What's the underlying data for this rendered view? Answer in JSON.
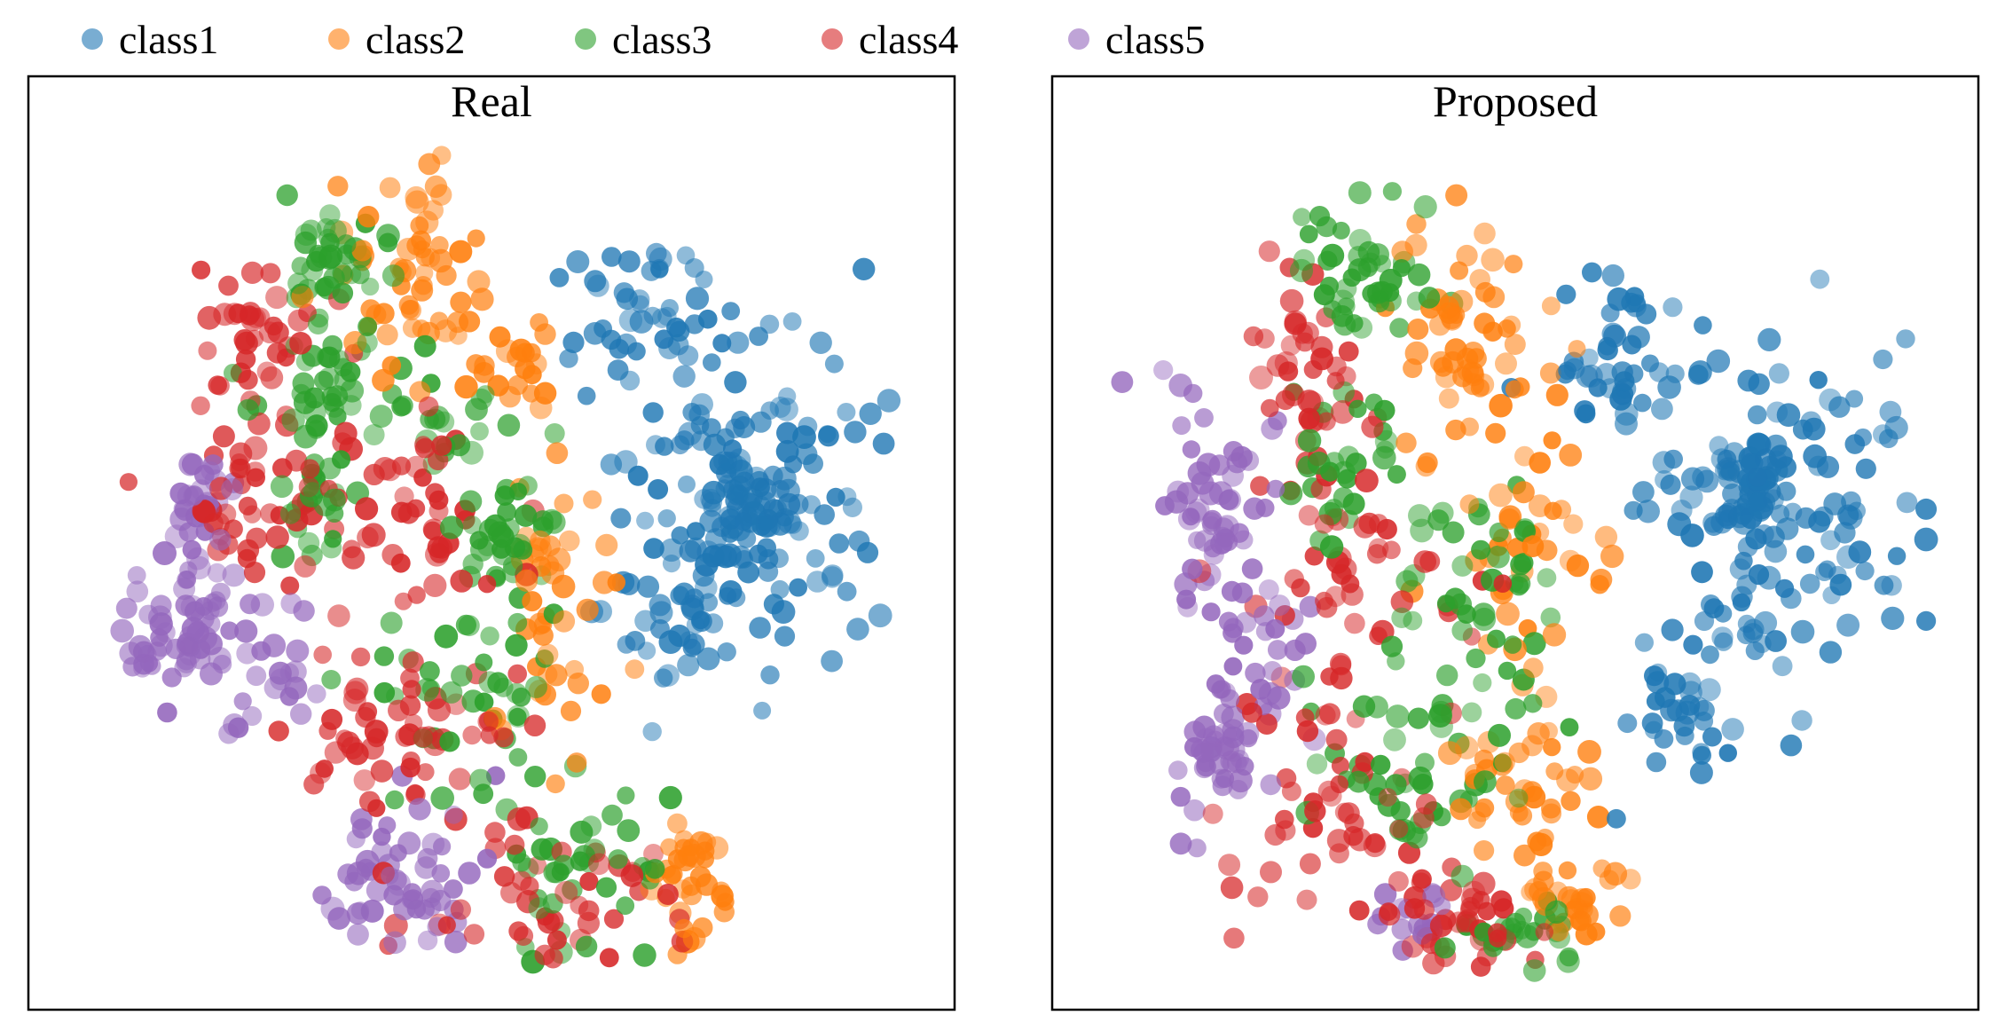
{
  "legend": {
    "items": [
      {
        "label": "class1",
        "color": "#1f77b4"
      },
      {
        "label": "class2",
        "color": "#ff7f0e"
      },
      {
        "label": "class3",
        "color": "#2ca02c"
      },
      {
        "label": "class4",
        "color": "#d62728"
      },
      {
        "label": "class5",
        "color": "#9467bd"
      }
    ]
  },
  "chart_data": [
    {
      "type": "scatter",
      "title": "Real",
      "xlabel": "",
      "ylabel": "",
      "grid": false,
      "axis_ticks": false,
      "xlim": [
        0,
        100
      ],
      "ylim": [
        0,
        100
      ],
      "legend_position": "top",
      "clusters": [
        {
          "series": "class1",
          "n": 170,
          "cx": 80,
          "cy": 58,
          "sx": 7.5,
          "sy": 9.5,
          "dense": [
            [
              80,
              57,
              2.2
            ]
          ],
          "seed": 11
        },
        {
          "series": "class1",
          "n": 45,
          "cx": 68,
          "cy": 79,
          "sx": 4.5,
          "sy": 4.5,
          "seed": 12
        },
        {
          "series": "class1",
          "n": 35,
          "cx": 70,
          "cy": 44,
          "sx": 4,
          "sy": 5,
          "seed": 13
        },
        {
          "series": "class2",
          "n": 60,
          "cx": 40,
          "cy": 83,
          "sx": 6,
          "sy": 6,
          "seed": 21
        },
        {
          "series": "class2",
          "n": 45,
          "cx": 56,
          "cy": 45,
          "sx": 3.2,
          "sy": 8,
          "seed": 22
        },
        {
          "series": "class2",
          "n": 35,
          "cx": 72,
          "cy": 13,
          "sx": 2.2,
          "sy": 5,
          "seed": 23
        },
        {
          "series": "class2",
          "n": 20,
          "cx": 51,
          "cy": 73,
          "sx": 2.5,
          "sy": 4,
          "seed": 24
        },
        {
          "series": "class3",
          "n": 40,
          "cx": 30,
          "cy": 85,
          "sx": 3.5,
          "sy": 3.5,
          "seed": 31
        },
        {
          "series": "class3",
          "n": 30,
          "cx": 28,
          "cy": 71,
          "sx": 3.5,
          "sy": 3,
          "seed": 32
        },
        {
          "series": "class3",
          "n": 25,
          "cx": 28,
          "cy": 57,
          "sx": 3,
          "sy": 3,
          "seed": 33
        },
        {
          "series": "class3",
          "n": 35,
          "cx": 50,
          "cy": 54,
          "sx": 3.5,
          "sy": 3.5,
          "seed": 34
        },
        {
          "series": "class3",
          "n": 40,
          "cx": 47,
          "cy": 33,
          "sx": 5.5,
          "sy": 5.5,
          "seed": 35
        },
        {
          "series": "class3",
          "n": 40,
          "cx": 58,
          "cy": 14,
          "sx": 6,
          "sy": 5,
          "seed": 36
        },
        {
          "series": "class3",
          "n": 25,
          "cx": 42,
          "cy": 70,
          "sx": 5,
          "sy": 4,
          "seed": 37
        },
        {
          "series": "class4",
          "n": 40,
          "cx": 21,
          "cy": 77,
          "sx": 3.5,
          "sy": 5,
          "seed": 41
        },
        {
          "series": "class4",
          "n": 45,
          "cx": 22,
          "cy": 57,
          "sx": 5,
          "sy": 4.5,
          "seed": 42
        },
        {
          "series": "class4",
          "n": 45,
          "cx": 40,
          "cy": 55,
          "sx": 6,
          "sy": 6,
          "seed": 43
        },
        {
          "series": "class4",
          "n": 55,
          "cx": 37,
          "cy": 29,
          "sx": 7,
          "sy": 6,
          "seed": 44
        },
        {
          "series": "class4",
          "n": 45,
          "cx": 56,
          "cy": 10,
          "sx": 7,
          "sy": 4,
          "seed": 45
        },
        {
          "series": "class5",
          "n": 60,
          "cx": 11,
          "cy": 42,
          "sx": 3.2,
          "sy": 4,
          "seed": 51
        },
        {
          "series": "class5",
          "n": 30,
          "cx": 15,
          "cy": 57,
          "sx": 1.8,
          "sy": 4,
          "seed": 52
        },
        {
          "series": "class5",
          "n": 25,
          "cx": 22,
          "cy": 36,
          "sx": 3,
          "sy": 4,
          "seed": 53
        },
        {
          "series": "class5",
          "n": 55,
          "cx": 38,
          "cy": 13,
          "sx": 6,
          "sy": 4.5,
          "seed": 54
        }
      ]
    },
    {
      "type": "scatter",
      "title": "Proposed",
      "xlabel": "",
      "ylabel": "",
      "grid": false,
      "axis_ticks": false,
      "xlim": [
        0,
        100
      ],
      "ylim": [
        0,
        100
      ],
      "legend_position": "top",
      "clusters": [
        {
          "series": "class1",
          "n": 170,
          "cx": 81,
          "cy": 56,
          "sx": 8,
          "sy": 11,
          "dense": [
            [
              77,
              60,
              2.2
            ]
          ],
          "seed": 111
        },
        {
          "series": "class1",
          "n": 45,
          "cx": 62,
          "cy": 75,
          "sx": 4.5,
          "sy": 6,
          "seed": 112
        },
        {
          "series": "class1",
          "n": 35,
          "cx": 70,
          "cy": 33,
          "sx": 4,
          "sy": 5,
          "seed": 113
        },
        {
          "series": "class2",
          "n": 60,
          "cx": 44,
          "cy": 77,
          "sx": 5,
          "sy": 8,
          "seed": 121
        },
        {
          "series": "class2",
          "n": 40,
          "cx": 51,
          "cy": 52,
          "sx": 5,
          "sy": 7,
          "seed": 122
        },
        {
          "series": "class2",
          "n": 30,
          "cx": 56,
          "cy": 10,
          "sx": 3,
          "sy": 2.5,
          "seed": 123
        },
        {
          "series": "class2",
          "n": 40,
          "cx": 50,
          "cy": 24,
          "sx": 5,
          "sy": 5,
          "seed": 124
        },
        {
          "series": "class3",
          "n": 45,
          "cx": 31,
          "cy": 84,
          "sx": 4,
          "sy": 4,
          "seed": 131
        },
        {
          "series": "class3",
          "n": 30,
          "cx": 30,
          "cy": 63,
          "sx": 4,
          "sy": 5,
          "seed": 132
        },
        {
          "series": "class3",
          "n": 45,
          "cx": 45,
          "cy": 47,
          "sx": 5,
          "sy": 7,
          "seed": 133
        },
        {
          "series": "class3",
          "n": 45,
          "cx": 37,
          "cy": 27,
          "sx": 6,
          "sy": 6,
          "seed": 134
        },
        {
          "series": "class3",
          "n": 25,
          "cx": 49,
          "cy": 7,
          "sx": 4,
          "sy": 2,
          "seed": 135
        },
        {
          "series": "class4",
          "n": 40,
          "cx": 24,
          "cy": 72,
          "sx": 4,
          "sy": 6,
          "seed": 141
        },
        {
          "series": "class4",
          "n": 50,
          "cx": 30,
          "cy": 47,
          "sx": 7,
          "sy": 8,
          "seed": 142
        },
        {
          "series": "class4",
          "n": 45,
          "cx": 28,
          "cy": 22,
          "sx": 7,
          "sy": 6,
          "seed": 143
        },
        {
          "series": "class4",
          "n": 40,
          "cx": 42,
          "cy": 7,
          "sx": 5,
          "sy": 3,
          "seed": 144
        },
        {
          "series": "class5",
          "n": 60,
          "cx": 13,
          "cy": 55,
          "sx": 3.5,
          "sy": 6,
          "seed": 151
        },
        {
          "series": "class5",
          "n": 45,
          "cx": 13,
          "cy": 27,
          "sx": 3,
          "sy": 5,
          "seed": 152
        },
        {
          "series": "class5",
          "n": 25,
          "cx": 20,
          "cy": 40,
          "sx": 3,
          "sy": 4,
          "seed": 153
        },
        {
          "series": "class5",
          "n": 15,
          "cx": 36,
          "cy": 8,
          "sx": 3,
          "sy": 2,
          "seed": 154
        }
      ]
    }
  ]
}
